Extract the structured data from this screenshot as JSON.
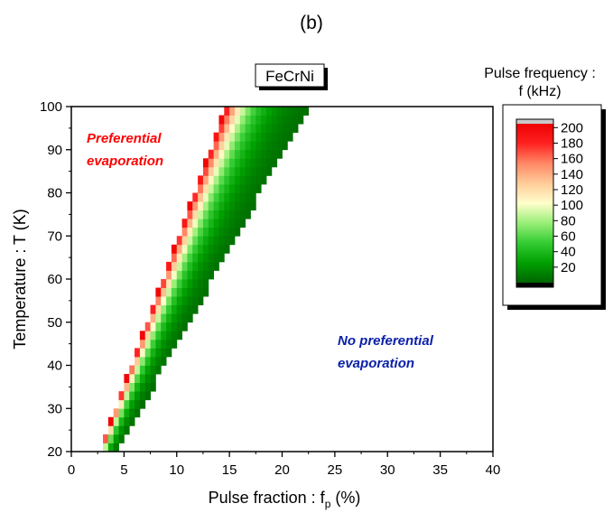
{
  "panel_label": "(b)",
  "chart_data": {
    "type": "heatmap",
    "title": "FeCrNi",
    "xlabel": "Pulse fraction : f",
    "xlabel_subscript": "p",
    "xlabel_suffix": " (%)",
    "ylabel": "Temperature : T (K)",
    "xlim": [
      0,
      40
    ],
    "ylim": [
      20,
      100
    ],
    "x_ticks": [
      "0",
      "5",
      "10",
      "15",
      "20",
      "25",
      "30",
      "35",
      "40"
    ],
    "y_ticks": [
      "20",
      "30",
      "40",
      "50",
      "60",
      "70",
      "80",
      "90",
      "100"
    ],
    "colorbar": {
      "title_line1": "Pulse frequency :",
      "title_line2": "f (kHz)",
      "range": [
        0,
        205
      ],
      "ticks": [
        "20",
        "40",
        "60",
        "80",
        "100",
        "120",
        "140",
        "160",
        "180",
        "200"
      ],
      "colors": [
        "#006400",
        "#00a000",
        "#33cc33",
        "#99ee77",
        "#ffffcc",
        "#ffcc99",
        "#ff8866",
        "#ff2222",
        "#ee0000"
      ],
      "over_color": "#c8c8c8",
      "under_color": "#000000"
    },
    "band": {
      "boundary_temperatures": [
        20,
        100
      ],
      "max_frequency_fraction": [
        2.7,
        14.7
      ],
      "min_frequency_fraction": [
        4.4,
        22.5
      ],
      "frequency_range": [
        5,
        200
      ],
      "temperature_step": 2
    },
    "annotations": [
      {
        "line1": "Preferential",
        "line2": "evaporation",
        "color": "#ff0000"
      },
      {
        "line1": "No preferential",
        "line2": "evaporation",
        "color": "#0a1fa8"
      }
    ]
  }
}
